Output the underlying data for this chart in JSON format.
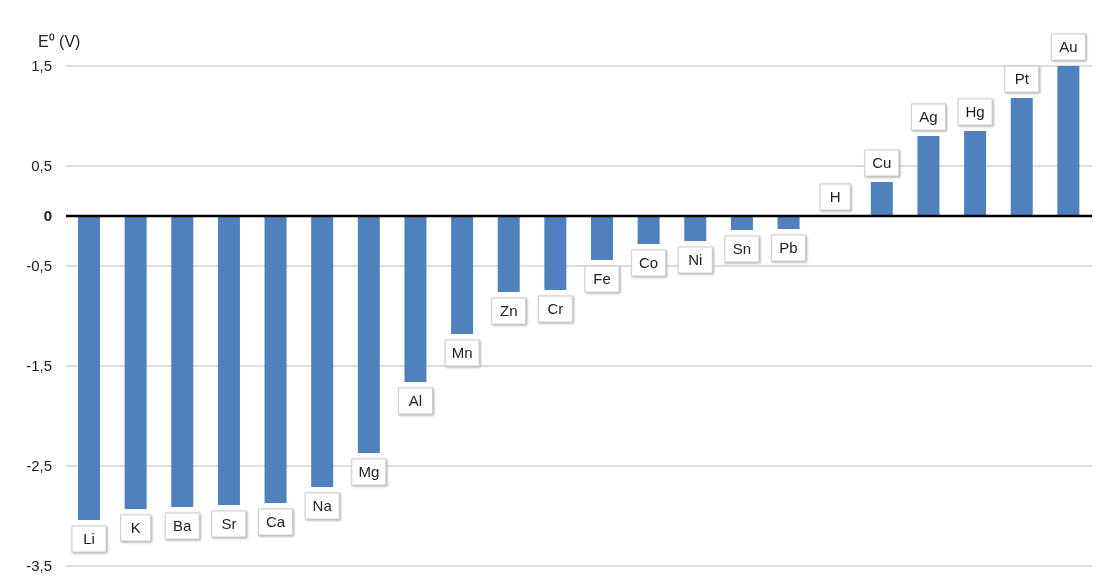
{
  "chart_data": {
    "type": "bar",
    "ylabel": "E⁰ (V)",
    "categories": [
      "Li",
      "K",
      "Ba",
      "Sr",
      "Ca",
      "Na",
      "Mg",
      "Al",
      "Mn",
      "Zn",
      "Cr",
      "Fe",
      "Co",
      "Ni",
      "Sn",
      "Pb",
      "H",
      "Cu",
      "Ag",
      "Hg",
      "Pt",
      "Au"
    ],
    "values": [
      -3.04,
      -2.93,
      -2.91,
      -2.89,
      -2.87,
      -2.71,
      -2.37,
      -1.66,
      -1.18,
      -0.76,
      -0.74,
      -0.44,
      -0.28,
      -0.25,
      -0.14,
      -0.13,
      0,
      0.34,
      0.8,
      0.85,
      1.18,
      1.5
    ],
    "color": "#4f81bd",
    "ylim": [
      -3.5,
      1.5
    ],
    "yticks": [
      {
        "value": -3.5,
        "label": "-3,5"
      },
      {
        "value": -2.5,
        "label": "-2,5"
      },
      {
        "value": -1.5,
        "label": "-1,5"
      },
      {
        "value": -0.5,
        "label": "-0,5"
      },
      0,
      {
        "value": 0.5,
        "label": "0,5"
      },
      {
        "value": 1.5,
        "label": "1,5"
      }
    ],
    "ref_lines": [
      {
        "axis": "y",
        "value": 0,
        "color": "#000000"
      }
    ],
    "grid": "y",
    "tick_labels": "y",
    "legend": false
  }
}
